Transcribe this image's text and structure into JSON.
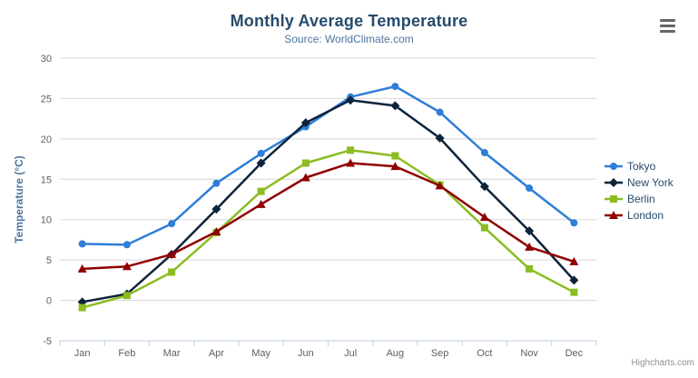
{
  "header": {
    "title": "Monthly Average Temperature",
    "subtitle": "Source: WorldClimate.com",
    "menu_icon": "hamburger-icon"
  },
  "credits": {
    "label": "Highcharts.com"
  },
  "chart_data": {
    "type": "line",
    "title": "Monthly Average Temperature",
    "subtitle": "Source: WorldClimate.com",
    "categories": [
      "Jan",
      "Feb",
      "Mar",
      "Apr",
      "May",
      "Jun",
      "Jul",
      "Aug",
      "Sep",
      "Oct",
      "Nov",
      "Dec"
    ],
    "xlabel": "",
    "ylabel": "Temperature (°C)",
    "ylim": [
      -5,
      30
    ],
    "yticks": [
      -5,
      0,
      5,
      10,
      15,
      20,
      25,
      30
    ],
    "grid": true,
    "legend_position": "right-middle",
    "colors": {
      "grid": "#d8d8d8",
      "axis_line": "#c0d0e0",
      "axis_label": "#606060",
      "axis_title": "#4d759e",
      "title": "#274b6d",
      "subtitle": "#4d759e",
      "legend_text": "#274b6d",
      "credits_text": "#909090"
    },
    "series": [
      {
        "name": "Tokyo",
        "color": "#2f7ed8",
        "marker": "circle",
        "values": [
          7.0,
          6.9,
          9.5,
          14.5,
          18.2,
          21.5,
          25.2,
          26.5,
          23.3,
          18.3,
          13.9,
          9.6
        ]
      },
      {
        "name": "New York",
        "color": "#0d233a",
        "marker": "diamond",
        "values": [
          -0.2,
          0.8,
          5.7,
          11.3,
          17.0,
          22.0,
          24.8,
          24.1,
          20.1,
          14.1,
          8.6,
          2.5
        ]
      },
      {
        "name": "Berlin",
        "color": "#8bbc21",
        "marker": "square",
        "values": [
          -0.9,
          0.6,
          3.5,
          8.4,
          13.5,
          17.0,
          18.6,
          17.9,
          14.3,
          9.0,
          3.9,
          1.0
        ]
      },
      {
        "name": "London",
        "color": "#910000",
        "marker": "triangle",
        "values": [
          3.9,
          4.2,
          5.7,
          8.5,
          11.9,
          15.2,
          17.0,
          16.6,
          14.2,
          10.3,
          6.6,
          4.8
        ]
      }
    ]
  }
}
